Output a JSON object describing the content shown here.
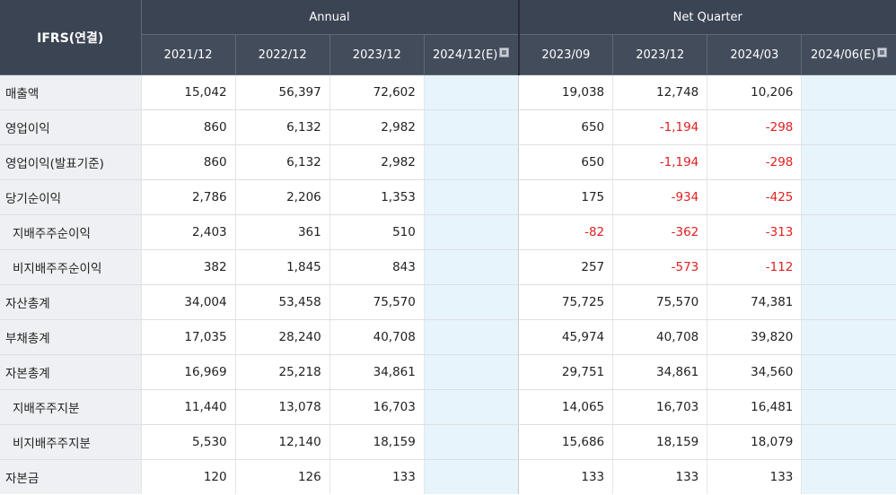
{
  "header": {
    "corner_label": "IFRS(연결)",
    "group_annual": "Annual",
    "group_quarter": "Net Quarter",
    "annual_periods": [
      "2021/12",
      "2022/12",
      "2023/12",
      "2024/12(E)"
    ],
    "quarter_periods": [
      "2023/09",
      "2023/12",
      "2024/03",
      "2024/06(E)"
    ],
    "estimate_icon": "info-square-icon"
  },
  "rows": [
    {
      "label": "매출액",
      "annual": [
        "15,042",
        "56,397",
        "72,602",
        ""
      ],
      "quarter": [
        "19,038",
        "12,748",
        "10,206",
        ""
      ]
    },
    {
      "label": "영업이익",
      "annual": [
        "860",
        "6,132",
        "2,982",
        ""
      ],
      "quarter": [
        "650",
        "-1,194",
        "-298",
        ""
      ]
    },
    {
      "label": "영업이익(발표기준)",
      "annual": [
        "860",
        "6,132",
        "2,982",
        ""
      ],
      "quarter": [
        "650",
        "-1,194",
        "-298",
        ""
      ]
    },
    {
      "label": "당기순이익",
      "annual": [
        "2,786",
        "2,206",
        "1,353",
        ""
      ],
      "quarter": [
        "175",
        "-934",
        "-425",
        ""
      ]
    },
    {
      "label": "지배주주순이익",
      "annual": [
        "2,403",
        "361",
        "510",
        ""
      ],
      "quarter": [
        "-82",
        "-362",
        "-313",
        ""
      ]
    },
    {
      "label": "비지배주주순이익",
      "annual": [
        "382",
        "1,845",
        "843",
        ""
      ],
      "quarter": [
        "257",
        "-573",
        "-112",
        ""
      ]
    },
    {
      "label": "자산총계",
      "annual": [
        "34,004",
        "53,458",
        "75,570",
        ""
      ],
      "quarter": [
        "75,725",
        "75,570",
        "74,381",
        ""
      ]
    },
    {
      "label": "부채총계",
      "annual": [
        "17,035",
        "28,240",
        "40,708",
        ""
      ],
      "quarter": [
        "45,974",
        "40,708",
        "39,820",
        ""
      ]
    },
    {
      "label": "자본총계",
      "annual": [
        "16,969",
        "25,218",
        "34,861",
        ""
      ],
      "quarter": [
        "29,751",
        "34,861",
        "34,560",
        ""
      ]
    },
    {
      "label": "지배주주지분",
      "annual": [
        "11,440",
        "13,078",
        "16,703",
        ""
      ],
      "quarter": [
        "14,065",
        "16,703",
        "16,481",
        ""
      ]
    },
    {
      "label": "비지배주주지분",
      "annual": [
        "5,530",
        "12,140",
        "18,159",
        ""
      ],
      "quarter": [
        "15,686",
        "18,159",
        "18,079",
        ""
      ]
    },
    {
      "label": "자본금",
      "annual": [
        "120",
        "126",
        "133",
        ""
      ],
      "quarter": [
        "133",
        "133",
        "133",
        ""
      ]
    }
  ],
  "colors": {
    "header_bg": "#3b4453",
    "label_bg": "#eef0f3",
    "estimate_bg": "#e7f4fb",
    "negative": "#e02020"
  }
}
